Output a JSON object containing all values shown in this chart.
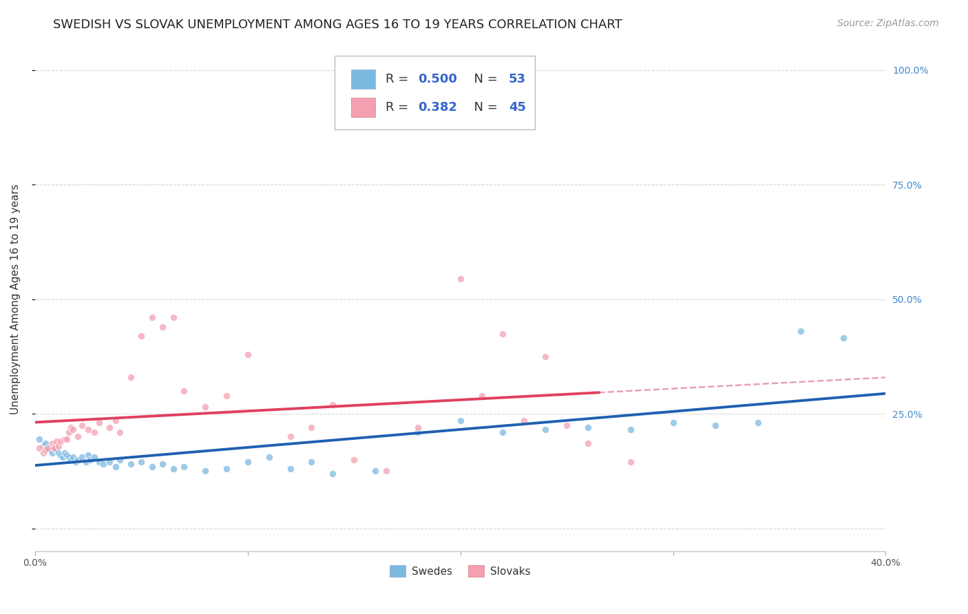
{
  "title": "SWEDISH VS SLOVAK UNEMPLOYMENT AMONG AGES 16 TO 19 YEARS CORRELATION CHART",
  "source": "Source: ZipAtlas.com",
  "ylabel": "Unemployment Among Ages 16 to 19 years",
  "xlim": [
    0.0,
    0.4
  ],
  "ylim": [
    -0.05,
    1.05
  ],
  "swedes_color": "#7cb9e0",
  "slovaks_color": "#f4a0b0",
  "swedes_line_color": "#2060b0",
  "slovaks_line_color": "#e04060",
  "slovaks_dashed_color": "#e8a0b0",
  "background_color": "#ffffff",
  "grid_color": "#cccccc",
  "right_tick_color": "#4488cc",
  "swedes_x": [
    0.002,
    0.004,
    0.005,
    0.006,
    0.007,
    0.008,
    0.009,
    0.01,
    0.011,
    0.012,
    0.013,
    0.014,
    0.015,
    0.016,
    0.017,
    0.018,
    0.019,
    0.02,
    0.022,
    0.024,
    0.025,
    0.026,
    0.028,
    0.03,
    0.032,
    0.035,
    0.038,
    0.04,
    0.045,
    0.05,
    0.055,
    0.06,
    0.065,
    0.07,
    0.08,
    0.09,
    0.1,
    0.11,
    0.12,
    0.13,
    0.14,
    0.16,
    0.18,
    0.2,
    0.22,
    0.24,
    0.26,
    0.28,
    0.3,
    0.32,
    0.34,
    0.36,
    0.38
  ],
  "swedes_y": [
    0.195,
    0.18,
    0.185,
    0.175,
    0.17,
    0.165,
    0.175,
    0.17,
    0.165,
    0.16,
    0.155,
    0.165,
    0.16,
    0.155,
    0.15,
    0.155,
    0.145,
    0.15,
    0.155,
    0.145,
    0.16,
    0.15,
    0.155,
    0.145,
    0.14,
    0.145,
    0.135,
    0.15,
    0.14,
    0.145,
    0.135,
    0.14,
    0.13,
    0.135,
    0.125,
    0.13,
    0.145,
    0.155,
    0.13,
    0.145,
    0.12,
    0.125,
    0.21,
    0.235,
    0.21,
    0.215,
    0.22,
    0.215,
    0.23,
    0.225,
    0.23,
    0.43,
    0.415
  ],
  "slovaks_x": [
    0.002,
    0.004,
    0.005,
    0.006,
    0.008,
    0.009,
    0.01,
    0.011,
    0.012,
    0.014,
    0.015,
    0.016,
    0.017,
    0.018,
    0.02,
    0.022,
    0.025,
    0.028,
    0.03,
    0.035,
    0.038,
    0.04,
    0.045,
    0.05,
    0.055,
    0.06,
    0.065,
    0.07,
    0.08,
    0.09,
    0.1,
    0.12,
    0.13,
    0.14,
    0.15,
    0.165,
    0.18,
    0.2,
    0.21,
    0.22,
    0.23,
    0.24,
    0.25,
    0.26,
    0.28
  ],
  "slovaks_y": [
    0.175,
    0.165,
    0.17,
    0.175,
    0.185,
    0.175,
    0.19,
    0.18,
    0.19,
    0.195,
    0.195,
    0.21,
    0.22,
    0.215,
    0.2,
    0.225,
    0.215,
    0.21,
    0.23,
    0.22,
    0.235,
    0.21,
    0.33,
    0.42,
    0.46,
    0.44,
    0.46,
    0.3,
    0.265,
    0.29,
    0.38,
    0.2,
    0.22,
    0.27,
    0.15,
    0.125,
    0.22,
    0.545,
    0.29,
    0.425,
    0.235,
    0.375,
    0.225,
    0.185,
    0.145
  ],
  "swedes_R": 0.5,
  "swedes_N": 53,
  "slovaks_R": 0.382,
  "slovaks_N": 45,
  "title_fontsize": 13,
  "source_fontsize": 10,
  "axis_tick_fontsize": 10,
  "legend_fontsize": 13,
  "ylabel_fontsize": 11,
  "marker_size": 55
}
